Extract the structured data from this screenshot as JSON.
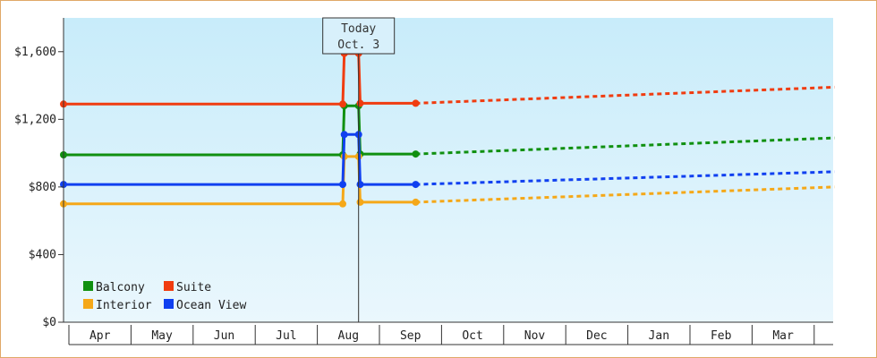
{
  "chart_data": {
    "type": "line",
    "ylim": [
      0,
      1800
    ],
    "y_ticks": [
      {
        "value": 0,
        "label": "$0"
      },
      {
        "value": 400,
        "label": "$400"
      },
      {
        "value": 800,
        "label": "$800"
      },
      {
        "value": 1200,
        "label": "$1,200"
      },
      {
        "value": 1600,
        "label": "$1,600"
      }
    ],
    "x_months": [
      "Apr",
      "May",
      "Jun",
      "Jul",
      "Aug",
      "Sep",
      "Oct",
      "Nov",
      "Dec",
      "Jan",
      "Feb",
      "Mar"
    ],
    "today": {
      "line1": "Today",
      "line2": "Oct. 3",
      "day": 186
    },
    "background_gradient": [
      "#c8ecfa",
      "#eaf7fd"
    ],
    "legend_position": "bottom-left",
    "series": [
      {
        "name": "Balcony",
        "color": "#109010",
        "points": [
          [
            0,
            990
          ],
          [
            176,
            990
          ],
          [
            177,
            1280
          ],
          [
            186,
            1280
          ],
          [
            187,
            995
          ],
          [
            222,
            995
          ]
        ],
        "forecast": [
          [
            222,
            995
          ],
          [
            486,
            1090
          ]
        ]
      },
      {
        "name": "Interior",
        "color": "#f5a818",
        "points": [
          [
            0,
            700
          ],
          [
            176,
            700
          ],
          [
            177,
            980
          ],
          [
            186,
            980
          ],
          [
            187,
            710
          ],
          [
            222,
            710
          ]
        ],
        "forecast": [
          [
            222,
            710
          ],
          [
            486,
            800
          ]
        ]
      },
      {
        "name": "Suite",
        "color": "#f03c10",
        "points": [
          [
            0,
            1290
          ],
          [
            176,
            1290
          ],
          [
            177,
            1590
          ],
          [
            186,
            1590
          ],
          [
            187,
            1295
          ],
          [
            222,
            1295
          ]
        ],
        "forecast": [
          [
            222,
            1295
          ],
          [
            486,
            1390
          ]
        ]
      },
      {
        "name": "Ocean View",
        "color": "#1040f0",
        "points": [
          [
            0,
            815
          ],
          [
            176,
            815
          ],
          [
            177,
            1110
          ],
          [
            186,
            1110
          ],
          [
            187,
            815
          ],
          [
            222,
            815
          ]
        ],
        "forecast": [
          [
            222,
            815
          ],
          [
            486,
            890
          ]
        ]
      }
    ]
  }
}
